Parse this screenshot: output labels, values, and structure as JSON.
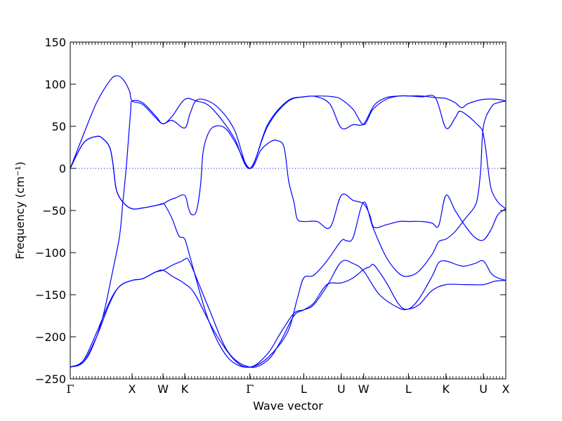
{
  "chart_data": {
    "type": "line",
    "xlabel": "Wave vector",
    "ylabel": "Frequency (cm⁻¹)",
    "ylim": [
      -250,
      150
    ],
    "yticks": [
      -250,
      -200,
      -150,
      -100,
      -50,
      0,
      50,
      100,
      150
    ],
    "ytick_labels": [
      "−250",
      "−200",
      "−150",
      "−100",
      "−50",
      "0",
      "50",
      "100",
      "150"
    ],
    "xlim": [
      0,
      6.62
    ],
    "kpoints": [
      {
        "label": "Γ",
        "x": 0.0
      },
      {
        "label": "X",
        "x": 0.94
      },
      {
        "label": "W",
        "x": 1.41
      },
      {
        "label": "K",
        "x": 1.74
      },
      {
        "label": "Γ",
        "x": 2.73
      },
      {
        "label": "L",
        "x": 3.55
      },
      {
        "label": "U",
        "x": 4.12
      },
      {
        "label": "W",
        "x": 4.46
      },
      {
        "label": "L",
        "x": 5.14
      },
      {
        "label": "K",
        "x": 5.71
      },
      {
        "label": "U",
        "x": 6.28
      },
      {
        "label": "X",
        "x": 6.62
      }
    ],
    "zero_line": true,
    "line_color": "#0000ff",
    "series": [
      {
        "values": [
          [
            0,
            0
          ],
          [
            0.2,
            40
          ],
          [
            0.4,
            78
          ],
          [
            0.6,
            104
          ],
          [
            0.7,
            110
          ],
          [
            0.8,
            106
          ],
          [
            0.9,
            92
          ],
          [
            0.94,
            80
          ],
          [
            1.1,
            76
          ],
          [
            1.3,
            60
          ],
          [
            1.41,
            53
          ],
          [
            1.55,
            57
          ],
          [
            1.74,
            48
          ],
          [
            1.82,
            65
          ],
          [
            1.92,
            81
          ],
          [
            2.1,
            80
          ],
          [
            2.3,
            68
          ],
          [
            2.5,
            45
          ],
          [
            2.73,
            0
          ],
          [
            3.0,
            52
          ],
          [
            3.3,
            80
          ],
          [
            3.55,
            85
          ],
          [
            3.75,
            85
          ],
          [
            3.95,
            76
          ],
          [
            4.12,
            48
          ],
          [
            4.3,
            52
          ],
          [
            4.46,
            53
          ],
          [
            4.62,
            75
          ],
          [
            4.8,
            84
          ],
          [
            5.0,
            86
          ],
          [
            5.14,
            86
          ],
          [
            5.35,
            86
          ],
          [
            5.55,
            84
          ],
          [
            5.71,
            83
          ],
          [
            5.85,
            78
          ],
          [
            5.95,
            72
          ],
          [
            6.05,
            77
          ],
          [
            6.28,
            82
          ],
          [
            6.5,
            82
          ],
          [
            6.62,
            80
          ]
        ]
      },
      {
        "values": [
          [
            0,
            0
          ],
          [
            0.2,
            30
          ],
          [
            0.4,
            38
          ],
          [
            0.5,
            35
          ],
          [
            0.6,
            25
          ],
          [
            0.65,
            5
          ],
          [
            0.7,
            -25
          ],
          [
            0.8,
            -40
          ],
          [
            0.94,
            -48
          ],
          [
            1.1,
            -47
          ],
          [
            1.3,
            -44
          ],
          [
            1.41,
            -42
          ],
          [
            1.45,
            -45
          ],
          [
            1.55,
            -60
          ],
          [
            1.65,
            -80
          ],
          [
            1.74,
            -84
          ],
          [
            1.82,
            -105
          ],
          [
            2.1,
            -180
          ],
          [
            2.4,
            -225
          ],
          [
            2.73,
            -236
          ],
          [
            3.0,
            -220
          ],
          [
            3.2,
            -195
          ],
          [
            3.4,
            -172
          ],
          [
            3.55,
            -168
          ],
          [
            3.7,
            -162
          ],
          [
            3.9,
            -140
          ],
          [
            4.12,
            -111
          ],
          [
            4.3,
            -113
          ],
          [
            4.46,
            -122
          ],
          [
            4.7,
            -150
          ],
          [
            5.0,
            -166
          ],
          [
            5.14,
            -167
          ],
          [
            5.3,
            -162
          ],
          [
            5.5,
            -145
          ],
          [
            5.71,
            -138
          ],
          [
            6.0,
            -138
          ],
          [
            6.28,
            -138
          ],
          [
            6.45,
            -134
          ],
          [
            6.62,
            -133
          ]
        ]
      },
      {
        "values": [
          [
            0,
            0
          ],
          [
            0.2,
            30
          ],
          [
            0.4,
            38
          ],
          [
            0.5,
            35
          ],
          [
            0.6,
            25
          ],
          [
            0.65,
            5
          ],
          [
            0.7,
            -25
          ],
          [
            0.8,
            -40
          ],
          [
            0.94,
            -48
          ],
          [
            1.1,
            -47
          ],
          [
            1.3,
            -44
          ],
          [
            1.41,
            -42
          ],
          [
            1.5,
            -38
          ],
          [
            1.6,
            -35
          ],
          [
            1.74,
            -32
          ],
          [
            1.8,
            -48
          ],
          [
            1.85,
            -55
          ],
          [
            1.92,
            -50
          ],
          [
            1.98,
            -20
          ],
          [
            2.02,
            20
          ],
          [
            2.1,
            42
          ],
          [
            2.2,
            50
          ],
          [
            2.35,
            48
          ],
          [
            2.5,
            32
          ],
          [
            2.73,
            0
          ],
          [
            2.9,
            22
          ],
          [
            3.05,
            32
          ],
          [
            3.15,
            33
          ],
          [
            3.25,
            25
          ],
          [
            3.32,
            -15
          ],
          [
            3.4,
            -40
          ],
          [
            3.45,
            -60
          ],
          [
            3.55,
            -63
          ],
          [
            3.75,
            -63
          ],
          [
            3.95,
            -70
          ],
          [
            4.12,
            -32
          ],
          [
            4.3,
            -38
          ],
          [
            4.46,
            -42
          ],
          [
            4.55,
            -55
          ],
          [
            4.62,
            -70
          ],
          [
            4.8,
            -67
          ],
          [
            5.0,
            -63
          ],
          [
            5.14,
            -63
          ],
          [
            5.35,
            -63
          ],
          [
            5.5,
            -65
          ],
          [
            5.6,
            -68
          ],
          [
            5.71,
            -32
          ],
          [
            5.85,
            -50
          ],
          [
            6.0,
            -68
          ],
          [
            6.15,
            -82
          ],
          [
            6.28,
            -85
          ],
          [
            6.4,
            -72
          ],
          [
            6.5,
            -55
          ],
          [
            6.62,
            -48
          ]
        ]
      },
      {
        "values": [
          [
            0,
            -236
          ],
          [
            0.2,
            -228
          ],
          [
            0.4,
            -195
          ],
          [
            0.6,
            -158
          ],
          [
            0.75,
            -140
          ],
          [
            0.94,
            -133
          ],
          [
            1.1,
            -131
          ],
          [
            1.3,
            -123
          ],
          [
            1.41,
            -121
          ],
          [
            1.55,
            -128
          ],
          [
            1.74,
            -137
          ],
          [
            1.9,
            -150
          ],
          [
            2.2,
            -195
          ],
          [
            2.5,
            -228
          ],
          [
            2.73,
            -236
          ],
          [
            3.0,
            -225
          ],
          [
            3.3,
            -195
          ],
          [
            3.45,
            -155
          ],
          [
            3.55,
            -130
          ],
          [
            3.7,
            -127
          ],
          [
            3.9,
            -110
          ],
          [
            4.12,
            -86
          ],
          [
            4.2,
            -86
          ],
          [
            4.3,
            -82
          ],
          [
            4.46,
            -40
          ],
          [
            4.6,
            -70
          ],
          [
            4.8,
            -105
          ],
          [
            5.0,
            -125
          ],
          [
            5.14,
            -128
          ],
          [
            5.3,
            -122
          ],
          [
            5.5,
            -102
          ],
          [
            5.6,
            -87
          ],
          [
            5.71,
            -84
          ],
          [
            5.85,
            -75
          ],
          [
            6.0,
            -60
          ],
          [
            6.15,
            -45
          ],
          [
            6.2,
            -30
          ],
          [
            6.24,
            0
          ],
          [
            6.28,
            50
          ],
          [
            6.4,
            73
          ],
          [
            6.5,
            78
          ],
          [
            6.62,
            80
          ]
        ]
      },
      {
        "values": [
          [
            0,
            -236
          ],
          [
            0.2,
            -230
          ],
          [
            0.4,
            -200
          ],
          [
            0.6,
            -160
          ],
          [
            0.75,
            -140
          ],
          [
            0.94,
            -133
          ],
          [
            1.1,
            -131
          ],
          [
            1.3,
            -123
          ],
          [
            1.41,
            -121
          ],
          [
            1.55,
            -115
          ],
          [
            1.7,
            -110
          ],
          [
            1.74,
            -108
          ],
          [
            1.82,
            -112
          ],
          [
            2.1,
            -165
          ],
          [
            2.4,
            -218
          ],
          [
            2.73,
            -236
          ],
          [
            3.0,
            -228
          ],
          [
            3.2,
            -205
          ],
          [
            3.4,
            -175
          ],
          [
            3.55,
            -168
          ],
          [
            3.7,
            -160
          ],
          [
            3.9,
            -138
          ],
          [
            4.12,
            -136
          ],
          [
            4.3,
            -130
          ],
          [
            4.46,
            -120
          ],
          [
            4.55,
            -117
          ],
          [
            4.62,
            -115
          ],
          [
            4.8,
            -135
          ],
          [
            5.0,
            -162
          ],
          [
            5.14,
            -167
          ],
          [
            5.3,
            -155
          ],
          [
            5.5,
            -128
          ],
          [
            5.6,
            -112
          ],
          [
            5.71,
            -110
          ],
          [
            5.9,
            -115
          ],
          [
            6.0,
            -116
          ],
          [
            6.15,
            -113
          ],
          [
            6.28,
            -110
          ],
          [
            6.4,
            -125
          ],
          [
            6.5,
            -130
          ],
          [
            6.62,
            -133
          ]
        ]
      },
      {
        "values": [
          [
            0,
            -236
          ],
          [
            0.2,
            -230
          ],
          [
            0.35,
            -210
          ],
          [
            0.5,
            -175
          ],
          [
            0.65,
            -120
          ],
          [
            0.75,
            -80
          ],
          [
            0.8,
            -40
          ],
          [
            0.85,
            0
          ],
          [
            0.88,
            30
          ],
          [
            0.92,
            70
          ],
          [
            0.94,
            80
          ],
          [
            1.1,
            78
          ],
          [
            1.3,
            62
          ],
          [
            1.41,
            53
          ],
          [
            1.55,
            62
          ],
          [
            1.74,
            82
          ],
          [
            1.92,
            80
          ],
          [
            2.1,
            75
          ],
          [
            2.3,
            58
          ],
          [
            2.5,
            35
          ],
          [
            2.73,
            0
          ],
          [
            3.0,
            50
          ],
          [
            3.3,
            79
          ],
          [
            3.55,
            85
          ],
          [
            3.8,
            86
          ],
          [
            4.0,
            85
          ],
          [
            4.12,
            82
          ],
          [
            4.3,
            70
          ],
          [
            4.46,
            52
          ],
          [
            4.6,
            70
          ],
          [
            4.8,
            82
          ],
          [
            5.0,
            86
          ],
          [
            5.14,
            86
          ],
          [
            5.35,
            85
          ],
          [
            5.55,
            84
          ],
          [
            5.71,
            48
          ],
          [
            5.85,
            60
          ],
          [
            5.92,
            68
          ],
          [
            6.05,
            62
          ],
          [
            6.15,
            55
          ],
          [
            6.25,
            47
          ],
          [
            6.28,
            40
          ],
          [
            6.32,
            20
          ],
          [
            6.35,
            0
          ],
          [
            6.4,
            -25
          ],
          [
            6.5,
            -40
          ],
          [
            6.62,
            -48
          ]
        ]
      }
    ]
  }
}
